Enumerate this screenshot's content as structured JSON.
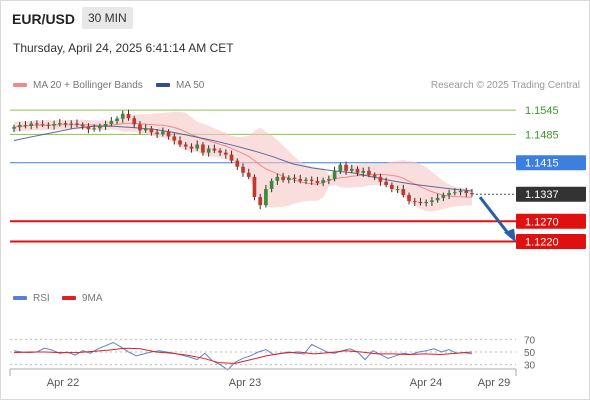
{
  "header": {
    "pair": "EUR/USD",
    "timeframe": "30 MIN"
  },
  "datetime": "Thursday, April 24, 2025 6:41:14 AM CET",
  "legend": {
    "ma20": {
      "label": "MA 20 + Bollinger Bands",
      "color": "#f08a8a"
    },
    "ma50": {
      "label": "MA 50",
      "color": "#2f4f8f"
    }
  },
  "credit": "Research © 2025 Trading Central",
  "rsi_legend": {
    "rsi": {
      "label": "RSI",
      "color": "#5b7fd6"
    },
    "ma9": {
      "label": "9MA",
      "color": "#e02020"
    }
  },
  "colors": {
    "up_candle": "#3a8a3a",
    "down_candle": "#c0392b",
    "support": "#e01010",
    "resistance": "#8bc34a",
    "pivot": "#3d7fe0",
    "last_price_bg": "#333333",
    "arrow": "#2a5fa8"
  },
  "chart_data": {
    "type": "candlestick",
    "price_ylim": [
      1.11,
      1.159
    ],
    "levels": [
      {
        "name": "resistance-2",
        "value": 1.1545,
        "label": "1.1545",
        "style": "resistance"
      },
      {
        "name": "resistance-1",
        "value": 1.1485,
        "label": "1.1485",
        "style": "resistance"
      },
      {
        "name": "pivot",
        "value": 1.1415,
        "label": "1.1415",
        "style": "pivot"
      },
      {
        "name": "last-price",
        "value": 1.1337,
        "label": "1.1337",
        "style": "last"
      },
      {
        "name": "support-1",
        "value": 1.127,
        "label": "1.1270",
        "style": "support"
      },
      {
        "name": "support-2",
        "value": 1.122,
        "label": "1.1220",
        "style": "support"
      }
    ],
    "forecast_arrow": {
      "from_value": 1.1337,
      "to_value": 1.1225
    },
    "x_ticks": [
      "Apr 22",
      "Apr 23",
      "Apr 24",
      "Apr 29"
    ],
    "close_path": [
      1.1503,
      1.1508,
      1.1506,
      1.1512,
      1.151,
      1.1509,
      1.1507,
      1.1511,
      1.1513,
      1.151,
      1.1512,
      1.1509,
      1.1505,
      1.1498,
      1.15,
      1.1506,
      1.1511,
      1.1518,
      1.1524,
      1.1536,
      1.1525,
      1.151,
      1.1495,
      1.15,
      1.149,
      1.1486,
      1.1492,
      1.148,
      1.147,
      1.146,
      1.1455,
      1.145,
      1.146,
      1.144,
      1.145,
      1.1445,
      1.144,
      1.1435,
      1.142,
      1.1405,
      1.139,
      1.138,
      1.133,
      1.131,
      1.135,
      1.137,
      1.138,
      1.1372,
      1.1378,
      1.1375,
      1.137,
      1.1373,
      1.137,
      1.1365,
      1.1372,
      1.1375,
      1.1395,
      1.141,
      1.1395,
      1.14,
      1.139,
      1.1395,
      1.1385,
      1.138,
      1.1368,
      1.136,
      1.135,
      1.135,
      1.1335,
      1.132,
      1.1318,
      1.1315,
      1.1318,
      1.1322,
      1.1328,
      1.1335,
      1.134,
      1.1342,
      1.1345,
      1.134,
      1.1337
    ],
    "ma50_path": [
      1.147,
      1.148,
      1.149,
      1.15,
      1.1505,
      1.1505,
      1.1502,
      1.1498,
      1.149,
      1.148,
      1.147,
      1.1458,
      1.1445,
      1.143,
      1.1412,
      1.1402,
      1.1395,
      1.139,
      1.138,
      1.137,
      1.1362,
      1.1356,
      1.135,
      1.1345
    ],
    "rsi": {
      "ylim": [
        20,
        80
      ],
      "ticks": [
        70,
        50,
        30
      ],
      "rsi_path": [
        52,
        50,
        49,
        50,
        56,
        53,
        48,
        50,
        45,
        52,
        48,
        55,
        60,
        65,
        58,
        50,
        44,
        47,
        50,
        52,
        50,
        48,
        45,
        42,
        38,
        48,
        36,
        30,
        22,
        34,
        40,
        44,
        50,
        54,
        46,
        48,
        50,
        48,
        47,
        62,
        56,
        50,
        48,
        52,
        55,
        50,
        38,
        52,
        46,
        40,
        44,
        48,
        46,
        50,
        52,
        55,
        50,
        54,
        48,
        49,
        47
      ],
      "ma9_path": [
        49,
        50,
        50,
        49,
        49,
        51,
        53,
        56,
        55,
        50,
        48,
        45,
        40,
        33,
        32,
        38,
        44,
        48,
        50,
        47,
        49,
        52,
        50,
        47,
        47,
        46,
        47,
        46,
        48,
        50
      ]
    }
  }
}
